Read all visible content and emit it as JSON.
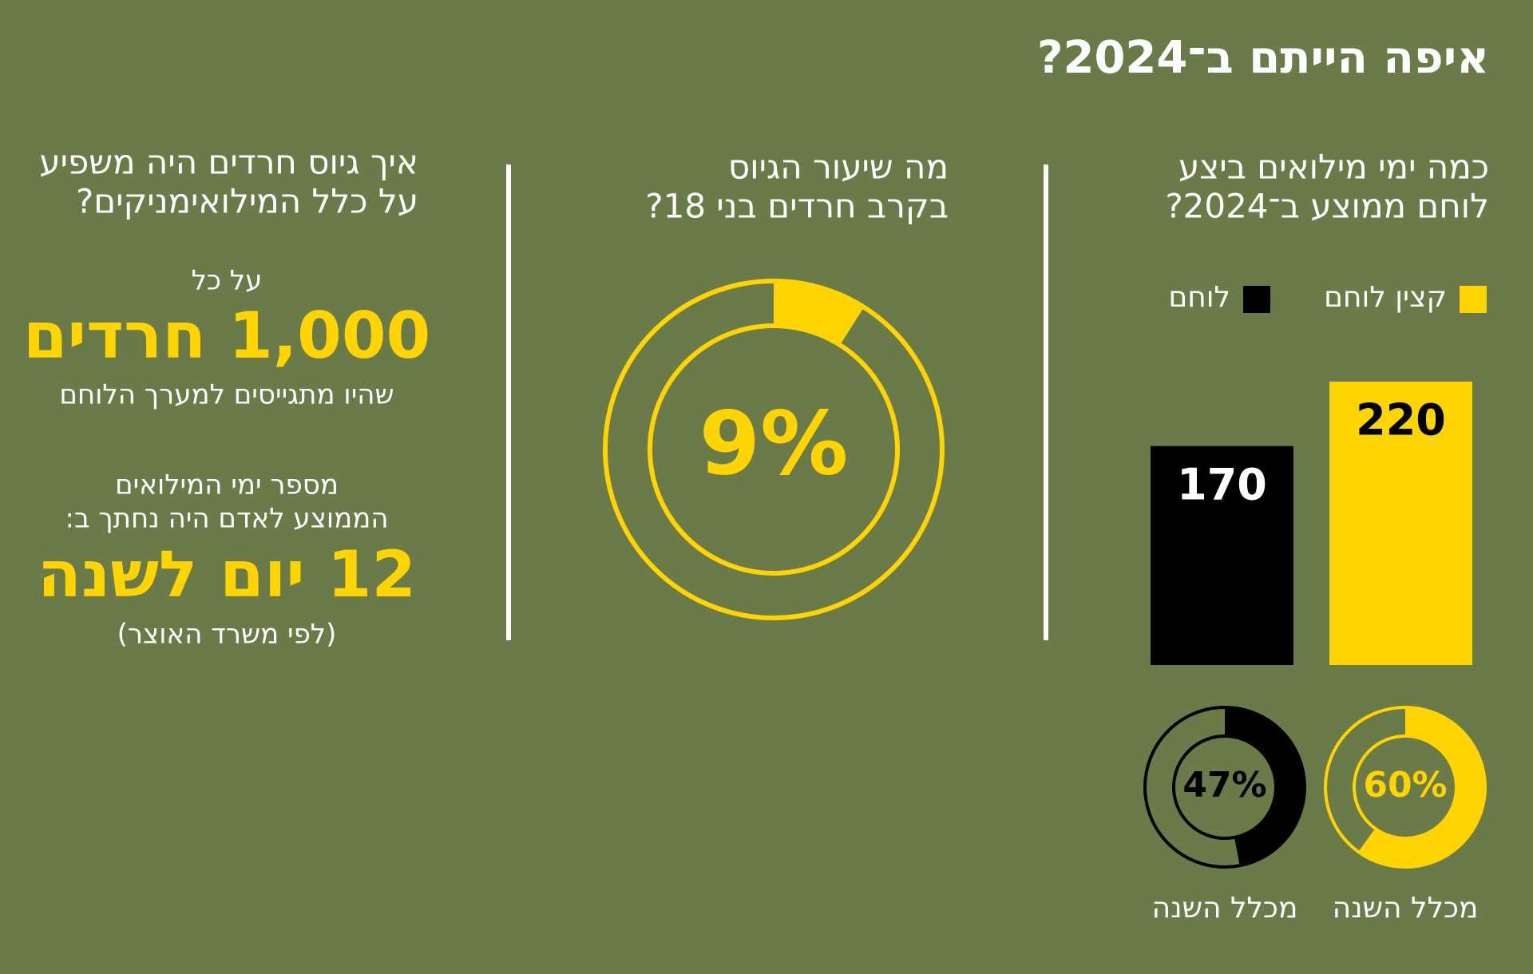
{
  "title": "איפה הייתם ב־2024?",
  "bar_chart": {
    "type": "bar",
    "title": [
      "כמה ימי מילואים ביצע",
      "לוחם ממוצע ב־2024?"
    ],
    "categories": [
      "קצין לוחם",
      "לוחם"
    ],
    "values": [
      220,
      170
    ],
    "colors": [
      "#ffd400",
      "#000000"
    ]
  },
  "year_share": {
    "type": "donut",
    "values": [
      60,
      47
    ],
    "value_labels": [
      "60%",
      "47%"
    ],
    "labels": [
      "מכלל השנה",
      "מכלל השנה"
    ],
    "colors": [
      "#ffd400",
      "#000000"
    ]
  },
  "recruitment": {
    "type": "donut",
    "title": [
      "מה שיעור הגיוס",
      "בקרב חרדים בני 18?"
    ],
    "values": [
      9
    ],
    "value_labels": [
      "9%"
    ],
    "colors": [
      "#ffd400"
    ]
  },
  "impact": {
    "title": [
      "איך גיוס חרדים היה משפיע",
      "על כלל המילואימניקים?"
    ],
    "per": "על כל",
    "headline_1": "1,000 חרדים",
    "caption_1": "שהיו מתגייסים למערך הלוחם",
    "intro_2": [
      "מספר ימי המילואים",
      "הממוצע לאדם היה נחתך ב:"
    ],
    "headline_2": "12 יום לשנה",
    "source": "(לפי משרד האוצר)"
  }
}
